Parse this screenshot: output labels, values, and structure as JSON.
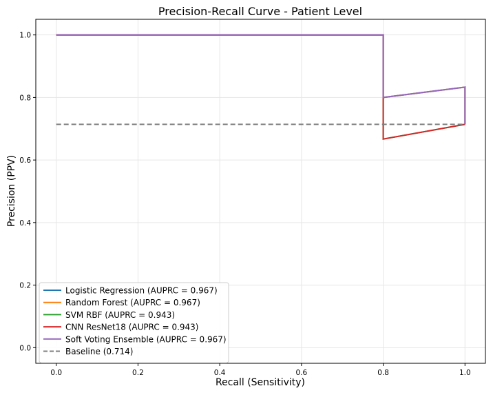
{
  "chart_data": {
    "type": "line",
    "title": "Precision-Recall Curve - Patient Level",
    "xlabel": "Recall (Sensitivity)",
    "ylabel": "Precision (PPV)",
    "xlim": [
      -0.05,
      1.05
    ],
    "ylim": [
      -0.05,
      1.05
    ],
    "xticks": [
      "0.0",
      "0.2",
      "0.4",
      "0.6",
      "0.8",
      "1.0"
    ],
    "yticks": [
      "0.0",
      "0.2",
      "0.4",
      "0.6",
      "0.8",
      "1.0"
    ],
    "grid": true,
    "legend_position": "lower-left",
    "series": [
      {
        "name": "Logistic Regression (AUPRC = 0.967)",
        "color": "#1f77b4",
        "dash": "solid",
        "x": [
          0.0,
          0.8,
          0.8,
          1.0,
          1.0
        ],
        "y": [
          1.0,
          1.0,
          0.8,
          0.833,
          0.714
        ]
      },
      {
        "name": "Random Forest (AUPRC = 0.967)",
        "color": "#ff7f0e",
        "dash": "solid",
        "x": [
          0.0,
          0.8,
          0.8,
          1.0,
          1.0
        ],
        "y": [
          1.0,
          1.0,
          0.8,
          0.833,
          0.714
        ]
      },
      {
        "name": "SVM RBF (AUPRC = 0.943)",
        "color": "#2ca02c",
        "dash": "solid",
        "x": [
          0.0,
          0.8,
          0.8,
          1.0
        ],
        "y": [
          1.0,
          1.0,
          0.667,
          0.714
        ]
      },
      {
        "name": "CNN ResNet18 (AUPRC = 0.943)",
        "color": "#d62728",
        "dash": "solid",
        "x": [
          0.0,
          0.8,
          0.8,
          1.0
        ],
        "y": [
          1.0,
          1.0,
          0.667,
          0.714
        ]
      },
      {
        "name": "Soft Voting Ensemble (AUPRC = 0.967)",
        "color": "#9467bd",
        "dash": "solid",
        "x": [
          0.0,
          0.8,
          0.8,
          1.0,
          1.0
        ],
        "y": [
          1.0,
          1.0,
          0.8,
          0.833,
          0.714
        ]
      },
      {
        "name": "Baseline (0.714)",
        "color": "#808080",
        "dash": "dashed",
        "x": [
          0.0,
          1.0
        ],
        "y": [
          0.714,
          0.714
        ]
      }
    ]
  }
}
